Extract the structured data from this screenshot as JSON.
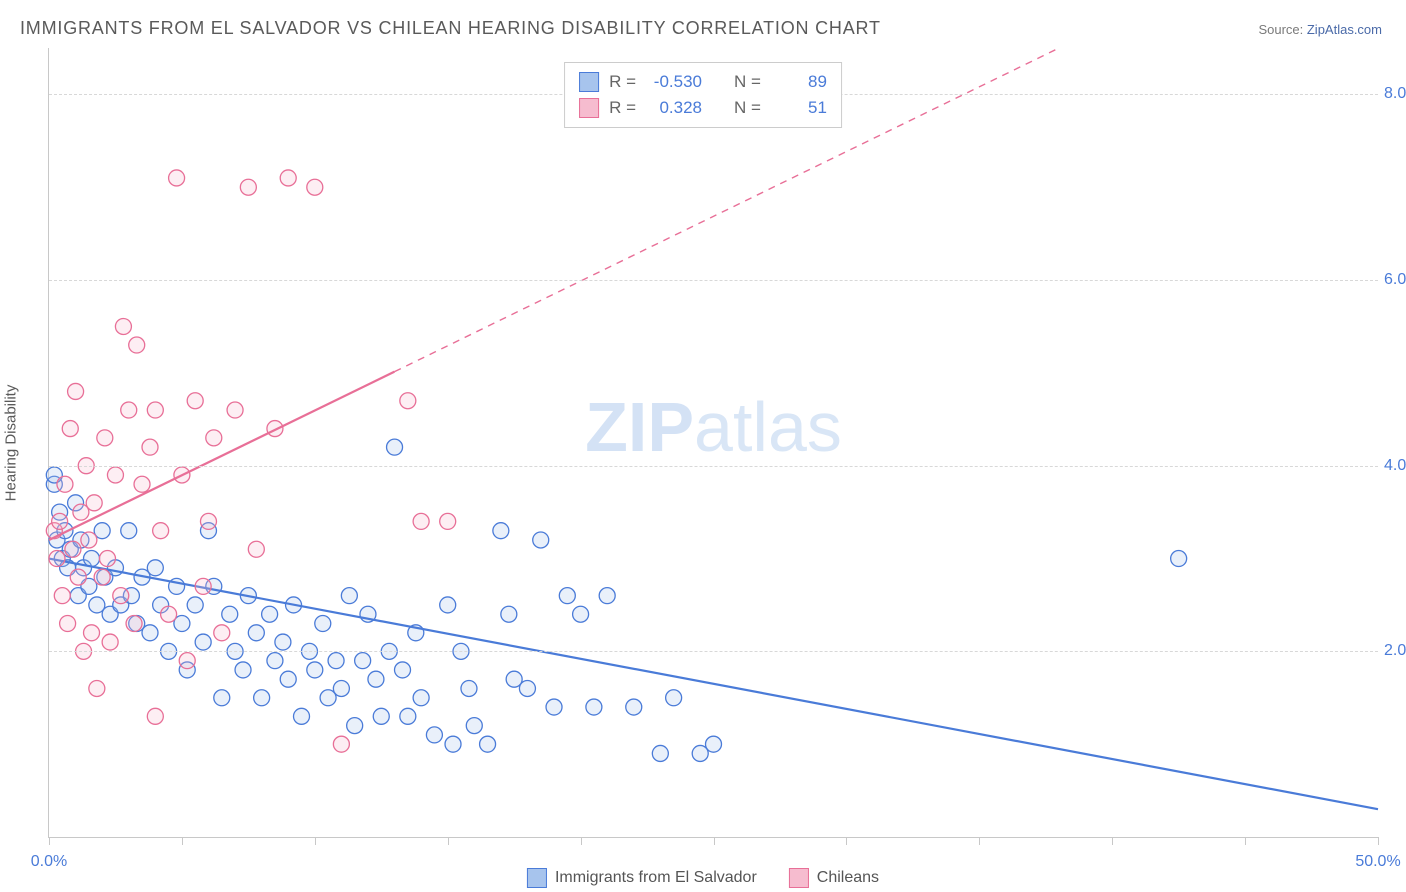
{
  "title": "IMMIGRANTS FROM EL SALVADOR VS CHILEAN HEARING DISABILITY CORRELATION CHART",
  "source_prefix": "Source: ",
  "source_name": "ZipAtlas.com",
  "watermark_bold": "ZIP",
  "watermark_thin": "atlas",
  "y_axis_title": "Hearing Disability",
  "chart": {
    "type": "scatter",
    "xlim": [
      0,
      50
    ],
    "ylim": [
      0,
      8.5
    ],
    "x_ticks": [
      0,
      5,
      10,
      15,
      20,
      25,
      30,
      35,
      40,
      45,
      50
    ],
    "x_tick_labels": {
      "0": "0.0%",
      "50": "50.0%"
    },
    "y_ticks": [
      2,
      4,
      6,
      8
    ],
    "y_tick_labels": {
      "2": "2.0%",
      "4": "4.0%",
      "6": "6.0%",
      "8": "8.0%"
    },
    "background_color": "#ffffff",
    "grid_color": "#d8d8d8",
    "axis_color": "#c8c8c8",
    "label_fontsize": 16,
    "label_color": "#4a7bd8",
    "marker_radius": 8,
    "marker_stroke_width": 1.3,
    "marker_fill_opacity": 0.25,
    "trend_line_width": 2.2,
    "series": [
      {
        "key": "el_salvador",
        "label": "Immigrants from El Salvador",
        "color_stroke": "#4a7bd8",
        "color_fill": "#a7c4ed",
        "R": "-0.530",
        "N": "89",
        "trend": {
          "x1": 0,
          "y1": 3.0,
          "x2": 50,
          "y2": 0.3,
          "dash_from_x": 50
        },
        "points": [
          [
            0.2,
            3.8
          ],
          [
            0.3,
            3.2
          ],
          [
            0.4,
            3.5
          ],
          [
            0.5,
            3.0
          ],
          [
            0.6,
            3.3
          ],
          [
            0.7,
            2.9
          ],
          [
            0.8,
            3.1
          ],
          [
            1.0,
            3.6
          ],
          [
            1.1,
            2.6
          ],
          [
            1.2,
            3.2
          ],
          [
            1.3,
            2.9
          ],
          [
            1.5,
            2.7
          ],
          [
            1.6,
            3.0
          ],
          [
            1.8,
            2.5
          ],
          [
            2.0,
            3.3
          ],
          [
            2.1,
            2.8
          ],
          [
            2.3,
            2.4
          ],
          [
            2.5,
            2.9
          ],
          [
            2.7,
            2.5
          ],
          [
            3.0,
            3.3
          ],
          [
            3.1,
            2.6
          ],
          [
            3.3,
            2.3
          ],
          [
            3.5,
            2.8
          ],
          [
            3.8,
            2.2
          ],
          [
            4.0,
            2.9
          ],
          [
            4.2,
            2.5
          ],
          [
            4.5,
            2.0
          ],
          [
            4.8,
            2.7
          ],
          [
            5.0,
            2.3
          ],
          [
            5.2,
            1.8
          ],
          [
            5.5,
            2.5
          ],
          [
            5.8,
            2.1
          ],
          [
            6.0,
            3.3
          ],
          [
            6.2,
            2.7
          ],
          [
            6.5,
            1.5
          ],
          [
            6.8,
            2.4
          ],
          [
            7.0,
            2.0
          ],
          [
            7.3,
            1.8
          ],
          [
            7.5,
            2.6
          ],
          [
            7.8,
            2.2
          ],
          [
            8.0,
            1.5
          ],
          [
            8.3,
            2.4
          ],
          [
            8.5,
            1.9
          ],
          [
            8.8,
            2.1
          ],
          [
            9.0,
            1.7
          ],
          [
            9.2,
            2.5
          ],
          [
            9.5,
            1.3
          ],
          [
            9.8,
            2.0
          ],
          [
            10.0,
            1.8
          ],
          [
            10.3,
            2.3
          ],
          [
            10.5,
            1.5
          ],
          [
            10.8,
            1.9
          ],
          [
            11.0,
            1.6
          ],
          [
            11.3,
            2.6
          ],
          [
            11.5,
            1.2
          ],
          [
            11.8,
            1.9
          ],
          [
            12.0,
            2.4
          ],
          [
            12.3,
            1.7
          ],
          [
            12.5,
            1.3
          ],
          [
            12.8,
            2.0
          ],
          [
            13.0,
            4.2
          ],
          [
            13.3,
            1.8
          ],
          [
            13.5,
            1.3
          ],
          [
            13.8,
            2.2
          ],
          [
            14.0,
            1.5
          ],
          [
            14.5,
            1.1
          ],
          [
            15.0,
            2.5
          ],
          [
            15.2,
            1.0
          ],
          [
            15.5,
            2.0
          ],
          [
            15.8,
            1.6
          ],
          [
            16.0,
            1.2
          ],
          [
            16.5,
            1.0
          ],
          [
            17.0,
            3.3
          ],
          [
            17.3,
            2.4
          ],
          [
            17.5,
            1.7
          ],
          [
            18.0,
            1.6
          ],
          [
            18.5,
            3.2
          ],
          [
            19.0,
            1.4
          ],
          [
            19.5,
            2.6
          ],
          [
            20.0,
            2.4
          ],
          [
            20.5,
            1.4
          ],
          [
            21.0,
            2.6
          ],
          [
            22.0,
            1.4
          ],
          [
            23.0,
            0.9
          ],
          [
            23.5,
            1.5
          ],
          [
            24.5,
            0.9
          ],
          [
            25.0,
            1.0
          ],
          [
            42.5,
            3.0
          ],
          [
            0.2,
            3.9
          ]
        ]
      },
      {
        "key": "chileans",
        "label": "Chileans",
        "color_stroke": "#e86f97",
        "color_fill": "#f6bccf",
        "R": "0.328",
        "N": "51",
        "trend": {
          "x1": 0,
          "y1": 3.2,
          "x2": 38,
          "y2": 8.5,
          "dash_from_x": 13
        },
        "points": [
          [
            0.2,
            3.3
          ],
          [
            0.3,
            3.0
          ],
          [
            0.4,
            3.4
          ],
          [
            0.5,
            2.6
          ],
          [
            0.6,
            3.8
          ],
          [
            0.7,
            2.3
          ],
          [
            0.8,
            4.4
          ],
          [
            0.9,
            3.1
          ],
          [
            1.0,
            4.8
          ],
          [
            1.1,
            2.8
          ],
          [
            1.2,
            3.5
          ],
          [
            1.3,
            2.0
          ],
          [
            1.4,
            4.0
          ],
          [
            1.5,
            3.2
          ],
          [
            1.6,
            2.2
          ],
          [
            1.7,
            3.6
          ],
          [
            1.8,
            1.6
          ],
          [
            2.0,
            2.8
          ],
          [
            2.1,
            4.3
          ],
          [
            2.2,
            3.0
          ],
          [
            2.3,
            2.1
          ],
          [
            2.5,
            3.9
          ],
          [
            2.7,
            2.6
          ],
          [
            2.8,
            5.5
          ],
          [
            3.0,
            4.6
          ],
          [
            3.2,
            2.3
          ],
          [
            3.3,
            5.3
          ],
          [
            3.5,
            3.8
          ],
          [
            3.8,
            4.2
          ],
          [
            4.0,
            4.6
          ],
          [
            4.2,
            3.3
          ],
          [
            4.5,
            2.4
          ],
          [
            4.8,
            7.1
          ],
          [
            5.0,
            3.9
          ],
          [
            5.2,
            1.9
          ],
          [
            5.5,
            4.7
          ],
          [
            5.8,
            2.7
          ],
          [
            6.0,
            3.4
          ],
          [
            6.2,
            4.3
          ],
          [
            6.5,
            2.2
          ],
          [
            7.0,
            4.6
          ],
          [
            7.5,
            7.0
          ],
          [
            7.8,
            3.1
          ],
          [
            8.5,
            4.4
          ],
          [
            9.0,
            7.1
          ],
          [
            10.0,
            7.0
          ],
          [
            11.0,
            1.0
          ],
          [
            13.5,
            4.7
          ],
          [
            14.0,
            3.4
          ],
          [
            15.0,
            3.4
          ],
          [
            4.0,
            1.3
          ]
        ]
      }
    ]
  },
  "legend_top": {
    "R_label": "R =",
    "N_label": "N ="
  }
}
